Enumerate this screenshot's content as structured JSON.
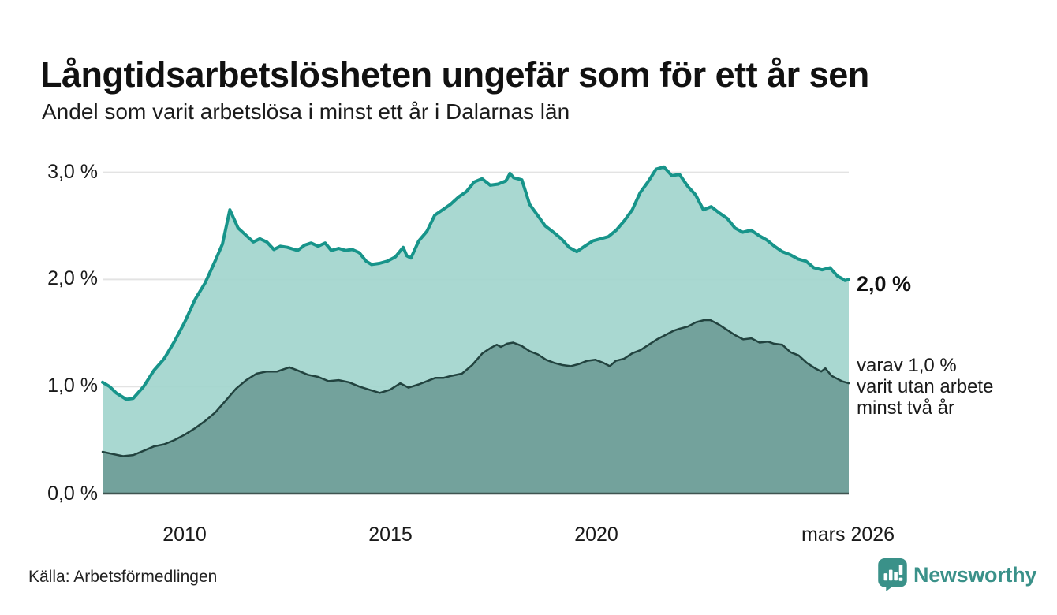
{
  "header": {
    "title": "Långtidsarbetslösheten ungefär som för ett år sen",
    "subtitle": "Andel som varit arbetslösa i minst ett år i Dalarnas län"
  },
  "chart_data": {
    "type": "area",
    "title": "Långtidsarbetslösheten ungefär som för ett år sen",
    "subtitle": "Andel som varit arbetslösa i minst ett år i Dalarnas län",
    "unit": "%",
    "grid": "horizontal-only",
    "x_axis": {
      "range": [
        2008.0,
        2026.17
      ],
      "ticks": [
        {
          "label": "2010",
          "year": 2010.0
        },
        {
          "label": "2015",
          "year": 2015.0
        },
        {
          "label": "2020",
          "year": 2020.0
        },
        {
          "label": "mars 2026",
          "year": 2026.17
        }
      ]
    },
    "y_axis": {
      "range": [
        0.0,
        3.0
      ],
      "tick_values": [
        3.0,
        2.0,
        1.0,
        0.0
      ],
      "labels": [
        "3,0 %",
        "2,0 %",
        "1,0 %",
        "0,0 %"
      ]
    },
    "series": [
      {
        "name": "Andel som varit arbetslösa i minst ett år",
        "line_color": "#17948a",
        "fill_color": "#a0d4cc",
        "line_width": 4,
        "end_value": 2.0,
        "end_label": "2,0 %",
        "points": [
          [
            2008.0,
            1.04
          ],
          [
            2008.17,
            1.0
          ],
          [
            2008.33,
            0.94
          ],
          [
            2008.58,
            0.88
          ],
          [
            2008.75,
            0.89
          ],
          [
            2009.0,
            1.0
          ],
          [
            2009.25,
            1.15
          ],
          [
            2009.5,
            1.26
          ],
          [
            2009.75,
            1.42
          ],
          [
            2010.0,
            1.6
          ],
          [
            2010.25,
            1.81
          ],
          [
            2010.5,
            1.97
          ],
          [
            2010.75,
            2.18
          ],
          [
            2010.92,
            2.33
          ],
          [
            2011.1,
            2.65
          ],
          [
            2011.3,
            2.48
          ],
          [
            2011.5,
            2.41
          ],
          [
            2011.67,
            2.35
          ],
          [
            2011.83,
            2.38
          ],
          [
            2012.0,
            2.35
          ],
          [
            2012.17,
            2.28
          ],
          [
            2012.33,
            2.31
          ],
          [
            2012.5,
            2.3
          ],
          [
            2012.75,
            2.27
          ],
          [
            2012.92,
            2.32
          ],
          [
            2013.08,
            2.34
          ],
          [
            2013.25,
            2.31
          ],
          [
            2013.42,
            2.34
          ],
          [
            2013.57,
            2.27
          ],
          [
            2013.75,
            2.29
          ],
          [
            2013.92,
            2.27
          ],
          [
            2014.08,
            2.28
          ],
          [
            2014.25,
            2.25
          ],
          [
            2014.42,
            2.17
          ],
          [
            2014.55,
            2.14
          ],
          [
            2014.74,
            2.15
          ],
          [
            2014.93,
            2.17
          ],
          [
            2015.13,
            2.21
          ],
          [
            2015.32,
            2.3
          ],
          [
            2015.41,
            2.22
          ],
          [
            2015.51,
            2.2
          ],
          [
            2015.7,
            2.36
          ],
          [
            2015.9,
            2.45
          ],
          [
            2016.09,
            2.6
          ],
          [
            2016.28,
            2.65
          ],
          [
            2016.47,
            2.7
          ],
          [
            2016.67,
            2.77
          ],
          [
            2016.86,
            2.82
          ],
          [
            2017.05,
            2.91
          ],
          [
            2017.24,
            2.94
          ],
          [
            2017.44,
            2.88
          ],
          [
            2017.63,
            2.89
          ],
          [
            2017.82,
            2.92
          ],
          [
            2017.92,
            2.99
          ],
          [
            2018.01,
            2.95
          ],
          [
            2018.21,
            2.93
          ],
          [
            2018.4,
            2.7
          ],
          [
            2018.59,
            2.6
          ],
          [
            2018.78,
            2.5
          ],
          [
            2018.98,
            2.44
          ],
          [
            2019.17,
            2.38
          ],
          [
            2019.36,
            2.3
          ],
          [
            2019.55,
            2.26
          ],
          [
            2019.74,
            2.31
          ],
          [
            2019.94,
            2.36
          ],
          [
            2020.13,
            2.38
          ],
          [
            2020.32,
            2.4
          ],
          [
            2020.51,
            2.46
          ],
          [
            2020.71,
            2.55
          ],
          [
            2020.9,
            2.65
          ],
          [
            2021.09,
            2.81
          ],
          [
            2021.28,
            2.91
          ],
          [
            2021.48,
            3.03
          ],
          [
            2021.67,
            3.05
          ],
          [
            2021.86,
            2.97
          ],
          [
            2022.05,
            2.98
          ],
          [
            2022.25,
            2.87
          ],
          [
            2022.44,
            2.79
          ],
          [
            2022.63,
            2.65
          ],
          [
            2022.82,
            2.68
          ],
          [
            2023.02,
            2.62
          ],
          [
            2023.21,
            2.57
          ],
          [
            2023.4,
            2.48
          ],
          [
            2023.59,
            2.44
          ],
          [
            2023.79,
            2.46
          ],
          [
            2023.98,
            2.41
          ],
          [
            2024.17,
            2.37
          ],
          [
            2024.36,
            2.31
          ],
          [
            2024.55,
            2.26
          ],
          [
            2024.75,
            2.23
          ],
          [
            2024.94,
            2.19
          ],
          [
            2025.13,
            2.17
          ],
          [
            2025.32,
            2.11
          ],
          [
            2025.52,
            2.09
          ],
          [
            2025.71,
            2.11
          ],
          [
            2025.9,
            2.03
          ],
          [
            2026.0,
            2.01
          ],
          [
            2026.08,
            1.99
          ],
          [
            2026.17,
            2.0
          ]
        ]
      },
      {
        "name": "varav varit utan arbete minst två år",
        "line_color": "#22433f",
        "fill_color": "#6d9c96",
        "line_width": 2.5,
        "end_value": 1.0,
        "end_label": "varav 1,0 % varit utan arbete minst två år",
        "points": [
          [
            2008.0,
            0.39
          ],
          [
            2008.25,
            0.37
          ],
          [
            2008.5,
            0.35
          ],
          [
            2008.75,
            0.36
          ],
          [
            2009.0,
            0.4
          ],
          [
            2009.25,
            0.44
          ],
          [
            2009.5,
            0.46
          ],
          [
            2009.75,
            0.5
          ],
          [
            2010.0,
            0.55
          ],
          [
            2010.25,
            0.61
          ],
          [
            2010.5,
            0.68
          ],
          [
            2010.75,
            0.76
          ],
          [
            2011.0,
            0.87
          ],
          [
            2011.25,
            0.98
          ],
          [
            2011.5,
            1.06
          ],
          [
            2011.75,
            1.12
          ],
          [
            2012.0,
            1.14
          ],
          [
            2012.25,
            1.14
          ],
          [
            2012.55,
            1.18
          ],
          [
            2012.75,
            1.15
          ],
          [
            2013.0,
            1.11
          ],
          [
            2013.25,
            1.09
          ],
          [
            2013.5,
            1.05
          ],
          [
            2013.75,
            1.06
          ],
          [
            2014.0,
            1.04
          ],
          [
            2014.25,
            1.0
          ],
          [
            2014.5,
            0.97
          ],
          [
            2014.75,
            0.94
          ],
          [
            2015.0,
            0.97
          ],
          [
            2015.25,
            1.03
          ],
          [
            2015.45,
            0.99
          ],
          [
            2015.7,
            1.02
          ],
          [
            2015.9,
            1.05
          ],
          [
            2016.1,
            1.08
          ],
          [
            2016.3,
            1.08
          ],
          [
            2016.5,
            1.1
          ],
          [
            2016.75,
            1.12
          ],
          [
            2017.0,
            1.2
          ],
          [
            2017.25,
            1.31
          ],
          [
            2017.45,
            1.36
          ],
          [
            2017.6,
            1.39
          ],
          [
            2017.7,
            1.37
          ],
          [
            2017.85,
            1.4
          ],
          [
            2018.0,
            1.41
          ],
          [
            2018.2,
            1.38
          ],
          [
            2018.4,
            1.33
          ],
          [
            2018.6,
            1.3
          ],
          [
            2018.8,
            1.25
          ],
          [
            2019.0,
            1.22
          ],
          [
            2019.2,
            1.2
          ],
          [
            2019.4,
            1.19
          ],
          [
            2019.6,
            1.21
          ],
          [
            2019.8,
            1.24
          ],
          [
            2020.0,
            1.25
          ],
          [
            2020.2,
            1.22
          ],
          [
            2020.35,
            1.19
          ],
          [
            2020.5,
            1.24
          ],
          [
            2020.7,
            1.26
          ],
          [
            2020.9,
            1.31
          ],
          [
            2021.1,
            1.34
          ],
          [
            2021.3,
            1.39
          ],
          [
            2021.5,
            1.44
          ],
          [
            2021.7,
            1.48
          ],
          [
            2021.9,
            1.52
          ],
          [
            2022.05,
            1.54
          ],
          [
            2022.25,
            1.56
          ],
          [
            2022.45,
            1.6
          ],
          [
            2022.65,
            1.62
          ],
          [
            2022.8,
            1.62
          ],
          [
            2023.0,
            1.58
          ],
          [
            2023.2,
            1.53
          ],
          [
            2023.4,
            1.48
          ],
          [
            2023.6,
            1.44
          ],
          [
            2023.8,
            1.45
          ],
          [
            2024.0,
            1.41
          ],
          [
            2024.2,
            1.42
          ],
          [
            2024.35,
            1.4
          ],
          [
            2024.55,
            1.39
          ],
          [
            2024.75,
            1.32
          ],
          [
            2024.95,
            1.29
          ],
          [
            2025.15,
            1.22
          ],
          [
            2025.35,
            1.17
          ],
          [
            2025.5,
            1.14
          ],
          [
            2025.6,
            1.17
          ],
          [
            2025.75,
            1.1
          ],
          [
            2025.9,
            1.07
          ],
          [
            2026.0,
            1.05
          ],
          [
            2026.17,
            1.03
          ]
        ]
      }
    ],
    "legend_position": "none"
  },
  "annotations": {
    "total_end_label": "2,0 %",
    "subset_end_line1": "varav 1,0 %",
    "subset_end_line2": "varit utan arbete",
    "subset_end_line3": "minst två år"
  },
  "footer": {
    "source": "Källa: Arbetsförmedlingen",
    "brand": "Newsworthy"
  },
  "colors": {
    "accent_teal": "#17948a",
    "fill_light": "#a0d4cc",
    "fill_dark": "#6d9c96",
    "line_dark": "#22433f",
    "gridline": "#e3e3e3",
    "baseline": "#3f5450",
    "text": "#111111",
    "brand_teal": "#3a9189"
  }
}
